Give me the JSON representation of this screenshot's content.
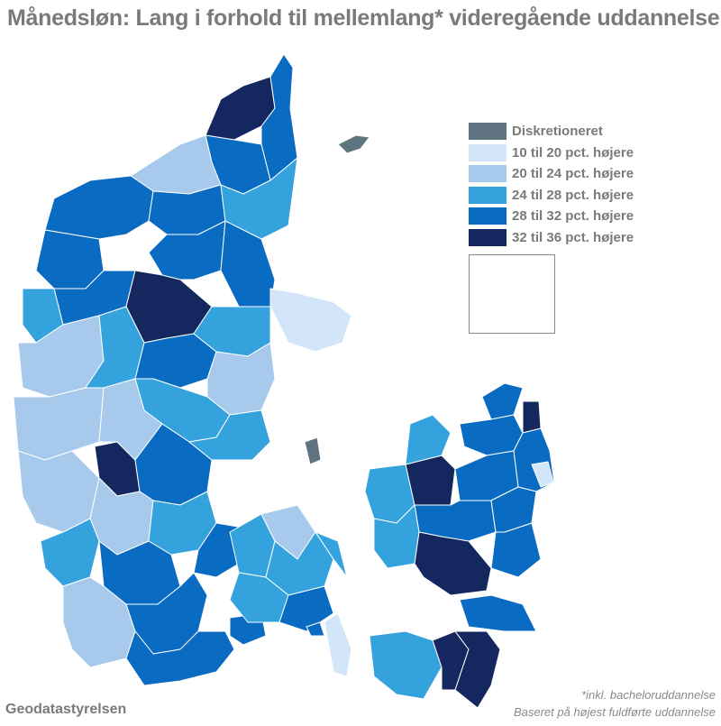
{
  "title": "Månedsløn: Lang i forhold til mellemlang* videregående uddannelse",
  "legend": [
    {
      "label": "Diskretioneret",
      "color": "#5f7380"
    },
    {
      "label": "10 til 20 pct. højere",
      "color": "#d3e6f9"
    },
    {
      "label": "20 til 24 pct. højere",
      "color": "#a6c9ec"
    },
    {
      "label": "24 til 28 pct. højere",
      "color": "#33a2dd"
    },
    {
      "label": "28 til 32 pct. højere",
      "color": "#0a6bc2"
    },
    {
      "label": "32 til 36 pct. højere",
      "color": "#14275f"
    }
  ],
  "inset_class": "24 til 28 pct. højere",
  "source": "Geodatastyrelsen",
  "notes": [
    "*inkl. bacheloruddannelse",
    "Baseret på højest fuldførte uddannelse"
  ]
}
